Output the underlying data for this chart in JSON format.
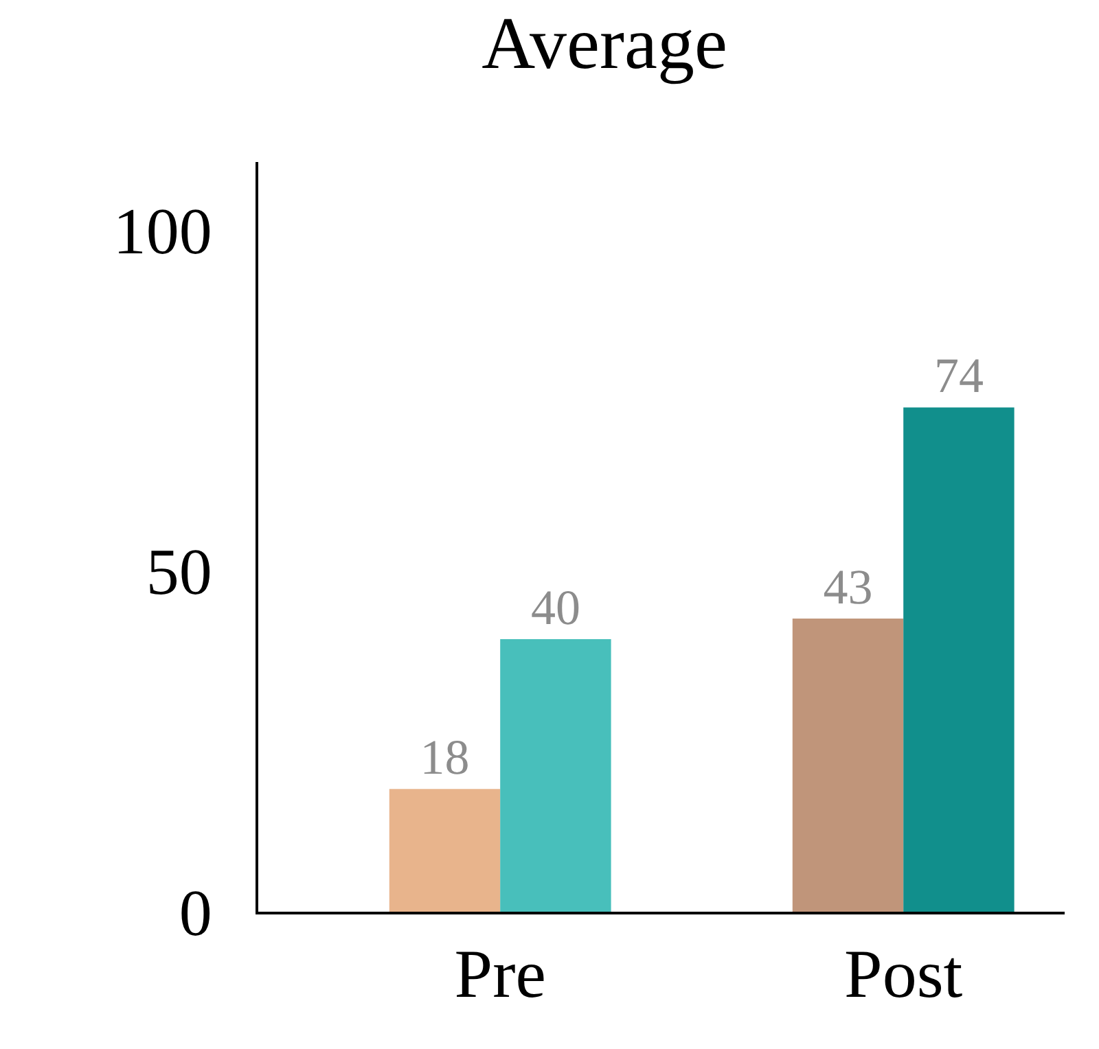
{
  "chart_data": {
    "type": "bar",
    "title": "Average",
    "categories": [
      "Pre",
      "Post"
    ],
    "series": [
      {
        "colors": [
          "#e8b48c",
          "#c0957a"
        ],
        "values": [
          18,
          43
        ]
      },
      {
        "colors": [
          "#48bfbb",
          "#118f8c"
        ],
        "values": [
          40,
          74
        ]
      }
    ],
    "ylim": [
      0,
      110
    ],
    "yticks": [
      0,
      50,
      100
    ],
    "data_labels": true
  }
}
